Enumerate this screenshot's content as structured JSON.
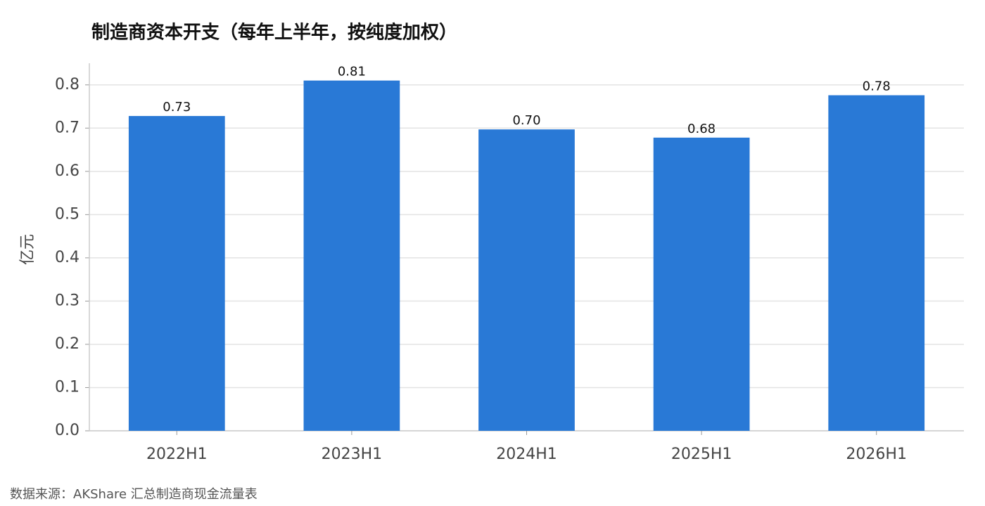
{
  "chart_data": {
    "type": "bar",
    "title": "制造商资本开支（每年上半年，按纯度加权）",
    "ylabel": "亿元",
    "source": "数据来源：AKShare 汇总制造商现金流量表",
    "categories": [
      "2022H1",
      "2023H1",
      "2024H1",
      "2025H1",
      "2026H1"
    ],
    "values": [
      0.728,
      0.81,
      0.697,
      0.678,
      0.776
    ],
    "value_labels": [
      "0.73",
      "0.81",
      "0.70",
      "0.68",
      "0.78"
    ],
    "color": "#2979d6",
    "ylim": [
      0,
      0.85
    ],
    "yticks": [
      {
        "value": 0,
        "label": "0.0"
      },
      0.1,
      0.2,
      0.3,
      0.4,
      0.5,
      0.6,
      0.7,
      0.8
    ],
    "grid": true
  }
}
